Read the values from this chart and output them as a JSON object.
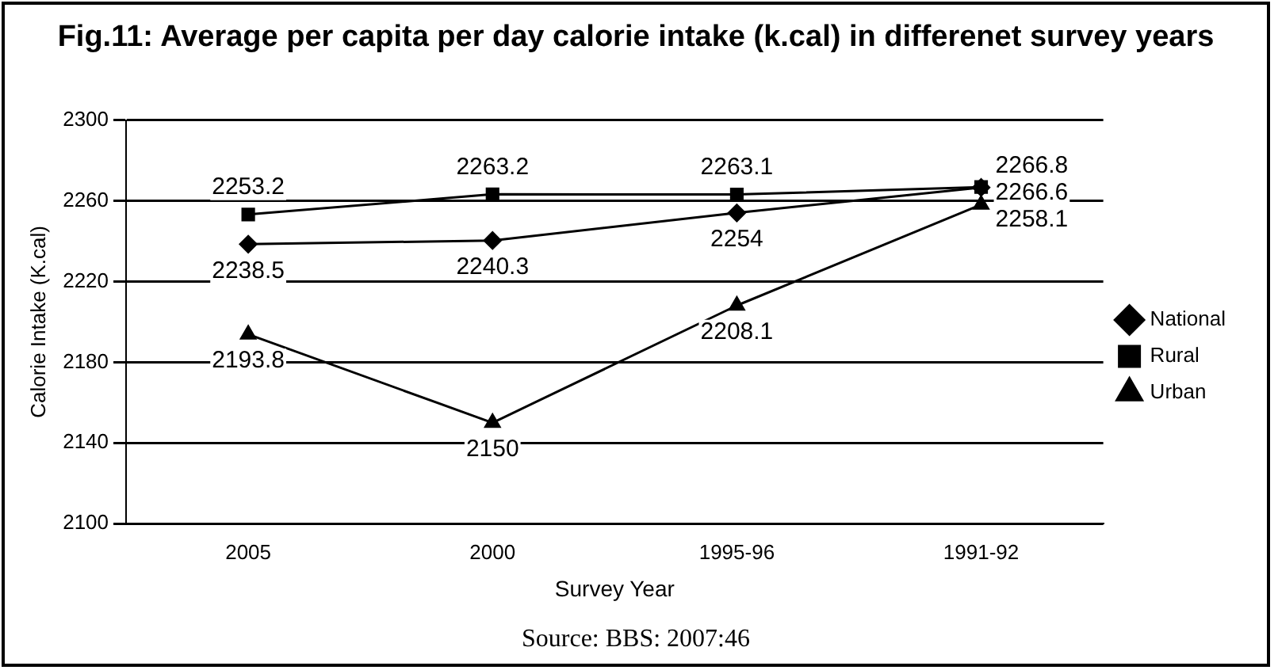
{
  "chart_data": {
    "type": "line",
    "title": "Fig.11: Average  per capita per day calorie intake (k.cal) in differenet survey years",
    "xlabel": "Survey Year",
    "ylabel": "Calorie Intake (K.cal)",
    "categories": [
      "2005",
      "2000",
      "1995-96",
      "1991-92"
    ],
    "series": [
      {
        "name": "National",
        "color": "#000000",
        "marker": "diamond",
        "values": [
          2238.5,
          2240.3,
          2254,
          2266.6
        ]
      },
      {
        "name": "Rural",
        "color": "#000000",
        "marker": "square",
        "values": [
          2253.2,
          2263.2,
          2263.1,
          2266.8
        ]
      },
      {
        "name": "Urban",
        "color": "#000000",
        "marker": "triangle",
        "values": [
          2193.8,
          2150,
          2208.1,
          2258.1
        ]
      }
    ],
    "ylim": [
      2100,
      2300
    ],
    "yticks": [
      2100,
      2140,
      2180,
      2220,
      2260,
      2300
    ],
    "grid": "y",
    "legend": "right",
    "data_labels": true,
    "annotations": [
      "Source: BBS: 2007:46"
    ]
  }
}
